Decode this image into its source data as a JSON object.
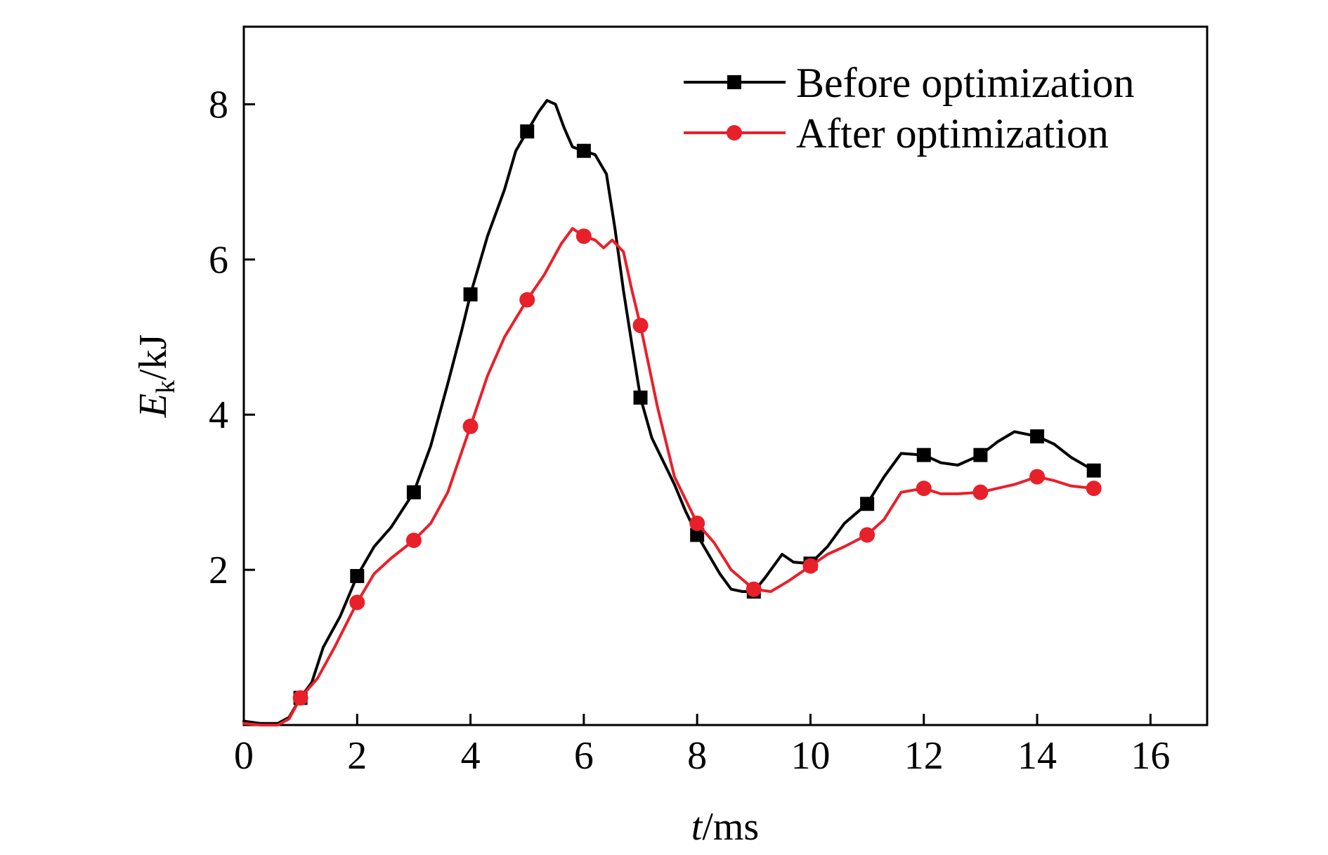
{
  "chart_data": {
    "type": "line",
    "xlabel": {
      "italic": "t",
      "rest": "/ms"
    },
    "ylabel": {
      "italic": "E",
      "sub": "k",
      "rest": "/kJ"
    },
    "xlim": [
      0,
      17
    ],
    "ylim": [
      0,
      9
    ],
    "xticks": [
      0,
      2,
      4,
      6,
      8,
      10,
      12,
      14,
      16
    ],
    "yticks": [
      2,
      4,
      6,
      8
    ],
    "xtick_labels": [
      "0",
      "2",
      "4",
      "6",
      "8",
      "10",
      "12",
      "14",
      "16"
    ],
    "ytick_labels": [
      "2",
      "4",
      "6",
      "8"
    ],
    "legend_position": "top-right",
    "grid": false,
    "series": [
      {
        "name": "Before optimization",
        "color": "#000000",
        "marker": "square",
        "marker_x": [
          1,
          2,
          3,
          4,
          5,
          6,
          7,
          8,
          9,
          10,
          11,
          12,
          13,
          14,
          15
        ],
        "marker_y": [
          0.35,
          1.92,
          3.0,
          5.55,
          7.65,
          7.4,
          4.22,
          2.45,
          1.72,
          2.08,
          2.85,
          3.48,
          3.48,
          3.72,
          3.28
        ],
        "curve": [
          [
            0,
            0.05
          ],
          [
            0.3,
            0.02
          ],
          [
            0.6,
            0.02
          ],
          [
            0.8,
            0.1
          ],
          [
            1,
            0.35
          ],
          [
            1.2,
            0.55
          ],
          [
            1.4,
            1.0
          ],
          [
            1.7,
            1.4
          ],
          [
            2,
            1.92
          ],
          [
            2.3,
            2.3
          ],
          [
            2.6,
            2.55
          ],
          [
            3,
            3.0
          ],
          [
            3.3,
            3.6
          ],
          [
            3.6,
            4.4
          ],
          [
            3.85,
            5.1
          ],
          [
            4,
            5.55
          ],
          [
            4.3,
            6.3
          ],
          [
            4.6,
            6.9
          ],
          [
            4.8,
            7.4
          ],
          [
            5,
            7.65
          ],
          [
            5.2,
            7.9
          ],
          [
            5.35,
            8.05
          ],
          [
            5.5,
            8.0
          ],
          [
            5.65,
            7.7
          ],
          [
            5.8,
            7.45
          ],
          [
            6,
            7.4
          ],
          [
            6.2,
            7.35
          ],
          [
            6.4,
            7.1
          ],
          [
            6.55,
            6.4
          ],
          [
            6.7,
            5.6
          ],
          [
            6.85,
            4.9
          ],
          [
            7,
            4.22
          ],
          [
            7.2,
            3.7
          ],
          [
            7.4,
            3.4
          ],
          [
            7.6,
            3.1
          ],
          [
            7.8,
            2.75
          ],
          [
            8,
            2.45
          ],
          [
            8.2,
            2.2
          ],
          [
            8.4,
            1.95
          ],
          [
            8.6,
            1.75
          ],
          [
            8.8,
            1.72
          ],
          [
            9,
            1.72
          ],
          [
            9.2,
            1.9
          ],
          [
            9.5,
            2.2
          ],
          [
            9.7,
            2.1
          ],
          [
            10,
            2.08
          ],
          [
            10.3,
            2.3
          ],
          [
            10.6,
            2.6
          ],
          [
            11,
            2.85
          ],
          [
            11.3,
            3.2
          ],
          [
            11.6,
            3.5
          ],
          [
            12,
            3.48
          ],
          [
            12.3,
            3.38
          ],
          [
            12.6,
            3.35
          ],
          [
            13,
            3.48
          ],
          [
            13.3,
            3.65
          ],
          [
            13.6,
            3.78
          ],
          [
            14,
            3.72
          ],
          [
            14.3,
            3.62
          ],
          [
            14.6,
            3.45
          ],
          [
            15,
            3.28
          ]
        ]
      },
      {
        "name": "After optimization",
        "color": "#e8202a",
        "marker": "circle",
        "marker_x": [
          1,
          2,
          3,
          4,
          5,
          6,
          7,
          8,
          9,
          10,
          11,
          12,
          13,
          14,
          15
        ],
        "marker_y": [
          0.35,
          1.58,
          2.38,
          3.85,
          5.48,
          6.3,
          5.15,
          2.6,
          1.75,
          2.05,
          2.45,
          3.05,
          3.0,
          3.2,
          3.05
        ],
        "curve": [
          [
            0,
            0.02
          ],
          [
            0.3,
            0.0
          ],
          [
            0.6,
            0.0
          ],
          [
            0.8,
            0.08
          ],
          [
            1,
            0.35
          ],
          [
            1.3,
            0.6
          ],
          [
            1.6,
            1.0
          ],
          [
            2,
            1.58
          ],
          [
            2.3,
            1.95
          ],
          [
            2.6,
            2.15
          ],
          [
            3,
            2.38
          ],
          [
            3.3,
            2.6
          ],
          [
            3.6,
            3.0
          ],
          [
            4,
            3.85
          ],
          [
            4.3,
            4.5
          ],
          [
            4.6,
            5.0
          ],
          [
            5,
            5.48
          ],
          [
            5.3,
            5.8
          ],
          [
            5.6,
            6.2
          ],
          [
            5.8,
            6.4
          ],
          [
            6,
            6.3
          ],
          [
            6.2,
            6.25
          ],
          [
            6.35,
            6.15
          ],
          [
            6.5,
            6.25
          ],
          [
            6.7,
            6.1
          ],
          [
            6.85,
            5.6
          ],
          [
            7,
            5.15
          ],
          [
            7.3,
            4.1
          ],
          [
            7.6,
            3.2
          ],
          [
            8,
            2.6
          ],
          [
            8.3,
            2.35
          ],
          [
            8.6,
            2.0
          ],
          [
            9,
            1.75
          ],
          [
            9.3,
            1.72
          ],
          [
            9.6,
            1.85
          ],
          [
            10,
            2.05
          ],
          [
            10.3,
            2.2
          ],
          [
            10.6,
            2.3
          ],
          [
            11,
            2.45
          ],
          [
            11.3,
            2.65
          ],
          [
            11.6,
            3.0
          ],
          [
            12,
            3.05
          ],
          [
            12.3,
            2.98
          ],
          [
            12.6,
            2.98
          ],
          [
            13,
            3.0
          ],
          [
            13.3,
            3.05
          ],
          [
            13.6,
            3.1
          ],
          [
            14,
            3.2
          ],
          [
            14.3,
            3.15
          ],
          [
            14.6,
            3.08
          ],
          [
            15,
            3.05
          ]
        ]
      }
    ]
  }
}
